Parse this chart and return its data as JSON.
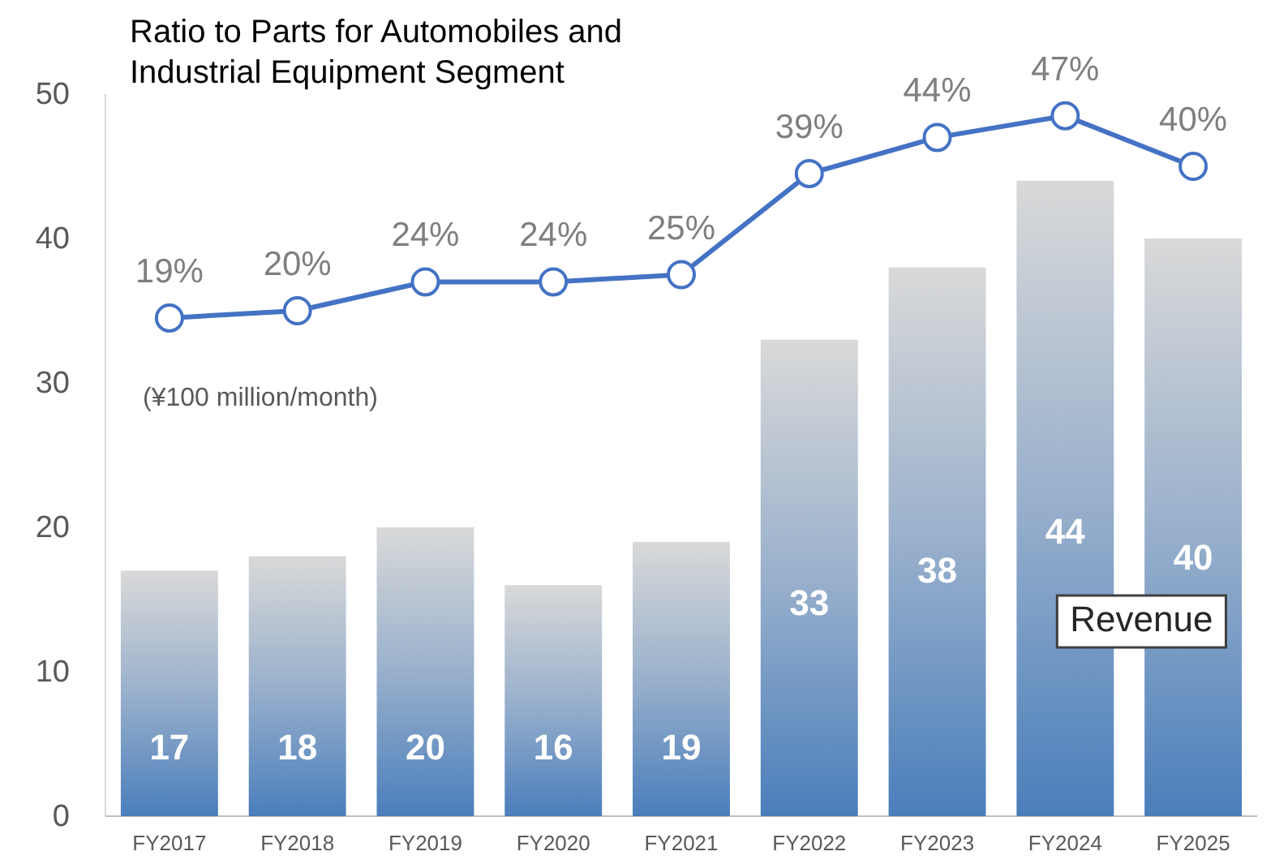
{
  "chart_data": {
    "type": "bar",
    "title": "Ratio to Parts for Automobiles and Industrial Equipment Segment",
    "categories": [
      "FY2017",
      "FY2018",
      "FY2019",
      "FY2020",
      "FY2021",
      "FY2022",
      "FY2023",
      "FY2024",
      "FY2025"
    ],
    "series": [
      {
        "name": "Revenue",
        "color": "#4a7ebb",
        "values": [
          17,
          18,
          20,
          16,
          19,
          33,
          38,
          44,
          40
        ]
      },
      {
        "type": "line",
        "axis": "y2",
        "color": "#4472c4",
        "values": [
          19,
          20,
          24,
          24,
          25,
          39,
          44,
          47,
          40
        ],
        "value_labels": [
          "19%",
          "20%",
          "24%",
          "24%",
          "25%",
          "39%",
          "44%",
          "47%",
          "40%"
        ]
      }
    ],
    "ylim": [
      0,
      50
    ],
    "yticks": [
      0,
      10,
      20,
      30,
      40,
      50
    ],
    "data_labels": true,
    "marker": "circle",
    "grid": false,
    "tick_labels": "y",
    "annotations": [
      "(¥100 million/month)"
    ]
  }
}
